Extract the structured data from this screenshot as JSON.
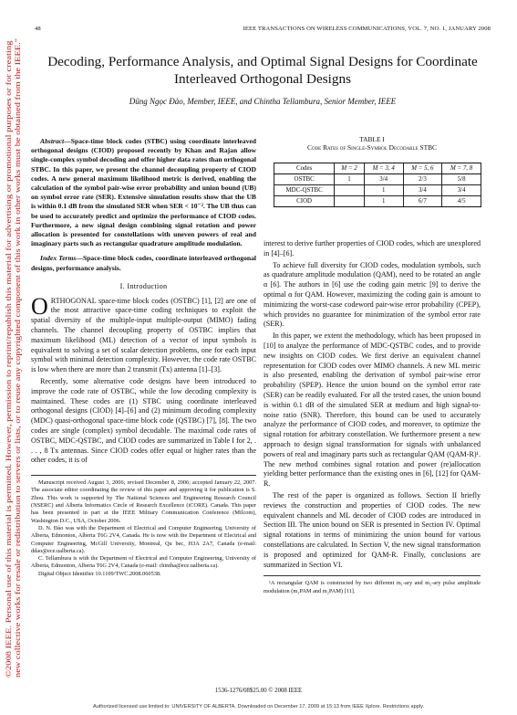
{
  "header": {
    "page_number": "48",
    "journal": "IEEE TRANSACTIONS ON WIRELESS COMMUNICATIONS, VOL. 7, NO. 1, JANUARY 2008"
  },
  "side_notice": "©2008 IEEE. Personal use of this material is permitted. However, permission to reprint/republish this material for advertising or promotional purposes or for creating new collective works for resale or redistribution to servers or lists, or to reuse any copyrighted component of this work in other works must be obtained from the IEEE.\"",
  "title": "Decoding, Performance Analysis, and Optimal Signal Designs for Coordinate Interleaved Orthogonal Designs",
  "authors": "Dũng Ngọc Đào, Member, IEEE, and Chintha Tellambura, Senior Member, IEEE",
  "abstract": {
    "label": "Abstract",
    "text": "—Space-time block codes (STBC) using coordinate interleaved orthogonal designs (CIOD) proposed recently by Khan and Rajan allow single-complex symbol decoding and offer higher data rates than orthogonal STBC. In this paper, we present the channel decoupling property of CIOD codes. A new general maximum likelihood metric is derived, enabling the calculation of the symbol pair-wise error probability and union bound (UB) on symbol error rate (SER). Extensive simulation results show that the UB is within 0.1 dB from the simulated SER when SER < 10⁻². The UB thus can be used to accurately predict and optimize the performance of CIOD codes. Furthermore, a new signal design combining signal rotation and power allocation is presented for constellations with uneven powers of real and imaginary parts such as rectangular quadrature amplitude modulation."
  },
  "index_terms": {
    "label": "Index Terms",
    "text": "—Space-time block codes, coordinate interleaved orthogonal designs, performance analysis."
  },
  "section1_heading": "I. Introduction",
  "intro_p1_dropcap": "O",
  "intro_p1": "RTHOGONAL space-time block codes (OSTBC) [1], [2] are one of the most attractive space-time coding techniques to exploit the spatial diversity of the multiple-input multiple-output (MIMO) fading channels. The channel decoupling property of OSTBC implies that maximum likelihood (ML) detection of a vector of input symbols is equivalent to solving a set of scalar detection problems, one for each input symbol with minimal detection complexity. However, the code rate OSTBC is low when there are more than 2 transmit (Tx) antenna [1]–[3].",
  "intro_p2": "Recently, some alternative code designs have been introduced to improve the code rate of OSTBC, while the low decoding complexity is maintained. These codes are (1) STBC using coordinate interleaved orthogonal designs (CIOD) [4]–[6] and (2) minimum decoding complexity (MDC) quasi-orthogonal space-time block code (QSTBC) [7], [8]. The two codes are single (complex) symbol decodable. The maximal code rates of OSTBC, MDC-QSTBC, and CIOD codes are summarized in Table I for 2, . . . , 8 Tx antennas. Since CIOD codes offer equal or higher rates than the other codes, it is of",
  "footnote_left": [
    "Manuscript received August 3, 2006; revised December 8, 2006; accepted January 22, 2007. The associate editor coordinating the review of this paper and approving it for publication is S. Zhou. This work is supported by The National Sciences and Engineering Research Council (NSERC) and Alberta Informatics Circle of Research Excellence (iCORE). Canada. This paper has been presented in part at the IEEE Military Communication Conference (Milcom), Washington D.C., USA, October 2006.",
    "D. N. Đào was with the Department of Electrical and Computer Engineering, University of Alberta, Edmonton, Alberta T6G 2V4, Canada. He is now with the Department of Electrical and Computer Engineering, McGill University, Montreal, Qu bec, H3A 2A7, Canada (e-mail: ddao@ece.ualberta.ca).",
    "C. Tellambura is with the Department of Electrical and Computer Engineering, University of Alberta, Edmonton, Alberta T6G 2V4, Canada (e-mail: chintha@ece.ualberta.ca).",
    "Digital Object Identifier 10.1109/TWC.2008.060538."
  ],
  "table": {
    "label": "TABLE I",
    "caption": "Code Rates of Single-Symbol Decodable STBC",
    "headers": [
      "Codes",
      "M = 2",
      "M = 3, 4",
      "M = 5, 6",
      "M = 7, 8"
    ],
    "rows": [
      [
        "OSTBC",
        "1",
        "3/4",
        "2/3",
        "5/8"
      ],
      [
        "MDC-QSTBC",
        "",
        "1",
        "3/4",
        "3/4"
      ],
      [
        "CIOD",
        "",
        "1",
        "6/7",
        "4/5"
      ]
    ]
  },
  "right_p0": "interest to derive further properties of CIOD codes, which are unexplored in [4]–[6].",
  "right_p1": "To achieve full diversity for CIOD codes, modulation symbols, such as quadrature amplitude modulation (QAM), need to be rotated an angle α [6]. The authors in [6] use the coding gain metric [9] to derive the optimal α for QAM. However, maximizing the coding gain is amount to minimizing the worst-case codeword pair-wise error probability (CPEP), which provides no guarantee for minimization of the symbol error rate (SER).",
  "right_p2": "In this paper, we extent the methodology, which has been proposed in [10] to analyze the performance of MDC-QSTBC codes, and to provide new insights on CIOD codes. We first derive an equivalent channel representation for CIOD codes over MIMO channels. A new ML metric is also presented, enabling the derivation of symbol pair-wise error probability (SPEP). Hence the union bound on the symbol error rate (SER) can be readily evaluated. For all the tested cases, the union bound is within 0.1 dB of the simulated SER at medium and high signal-to-noise ratio (SNR). Therefore, this bound can be used to accurately analyze the performance of CIOD codes, and moreover, to optimize the signal rotation for arbitrary constellation. We furthermore present a new approach to design signal transformation for signals with unbalanced powers of real and imaginary parts such as rectangular QAM (QAM-R)¹. The new method combines signal rotation and power (re)allocation yielding better performance than the existing ones in [6], [12] for QAM-R.",
  "right_p3": "The rest of the paper is organized as follows. Section II briefly reviews the construction and properties of CIOD codes. The new equivalent channels and ML decoder of CIOD codes are introduced in Section III. The union bound on SER is presented in Section IV. Optimal signal rotations in terms of minimizing the union bound for various constellations are calculated. In Section V, the new signal transformation is proposed and optimized for QAM-R. Finally, conclusions are summarized in Section VI.",
  "footnote_right": "¹A rectangular QAM is constructed by two different m₁-ary and m₂-ary pulse amplitude modulation (m₁PAM and m₂PAM) [11].",
  "copyright": "1536-1276/08$25.00 © 2008 IEEE",
  "license": "Authorized licensed use limited to: UNIVERSITY OF ALBERTA. Downloaded on December 17, 2009 at 15:13 from IEEE Xplore.  Restrictions apply."
}
